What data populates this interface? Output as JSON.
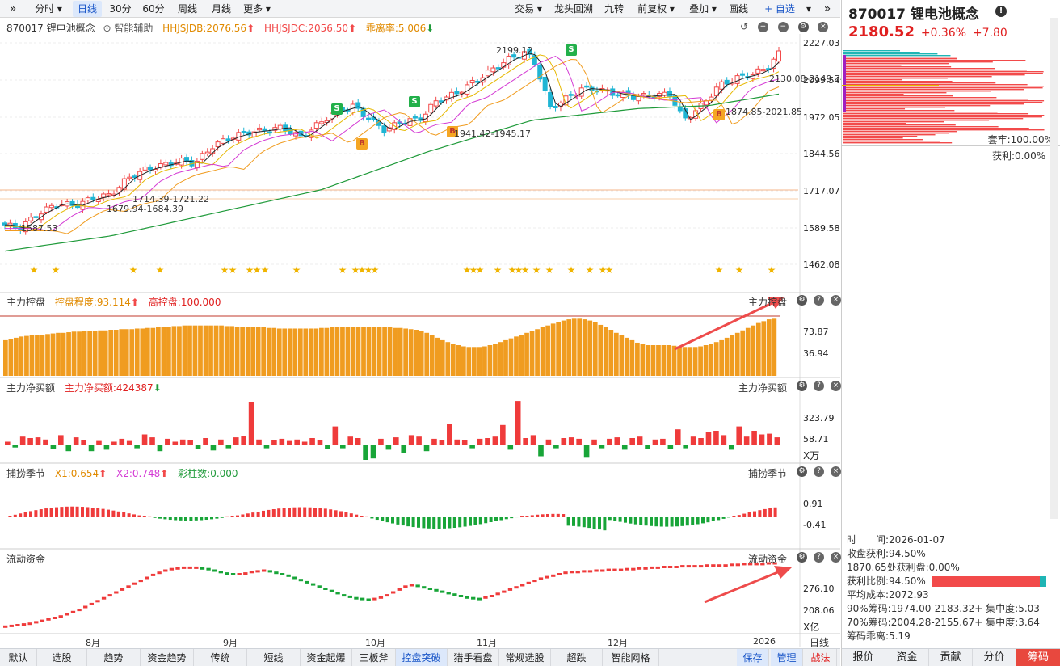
{
  "toolbar": {
    "expand_icon": "»",
    "periods": [
      "分时",
      "日线",
      "30分",
      "60分",
      "周线",
      "月线",
      "更多"
    ],
    "active_period": "日线",
    "right_buttons": [
      "交易",
      "龙头回溯",
      "九转",
      "前复权",
      "叠加",
      "画线",
      "+ 自选"
    ],
    "collapse_icon": "»"
  },
  "main": {
    "title": "870017 锂电池概念",
    "assist": "智能辅助",
    "hhjsjdb": "HHJSJDB:2076.56",
    "hhjsjdc": "HHJSJDC:2056.50",
    "divergence": "乖离率:5.006",
    "y_labels": [
      "2227.03",
      "2099.54",
      "1972.05",
      "1844.56",
      "1717.07",
      "1589.58",
      "1462.08"
    ],
    "annotations": [
      "2199.12",
      "2130.08-2149.74",
      "1874.85-2021.85",
      "1941.42-1945.17",
      "1714.39-1721.22",
      "1679.94-1684.39",
      "1587.53"
    ],
    "signals": [
      "B",
      "S"
    ]
  },
  "panels": {
    "control": {
      "name": "主力控盘",
      "degree": "控盘程度:93.114",
      "high": "高控盘:100.000",
      "y1": "73.87",
      "y2": "36.94"
    },
    "netbuy": {
      "name": "主力净买额",
      "value": "主力净买额:424387",
      "y1": "323.79",
      "y2": "58.71",
      "unit": "X万"
    },
    "season": {
      "name": "捕捞季节",
      "x1": "X1:0.654",
      "x2": "X2:0.748",
      "bars": "彩柱数:0.000",
      "y1": "0.91",
      "y2": "-0.41"
    },
    "flow": {
      "name": "流动资金",
      "y1": "276.10",
      "y2": "208.06",
      "unit": "X亿"
    }
  },
  "xaxis": {
    "months": [
      "8月",
      "9月",
      "10月",
      "11月",
      "12月",
      "2026"
    ],
    "period": "日线"
  },
  "bottom_tabs": [
    "默认",
    "选股",
    "趋势",
    "资金趋势",
    "传统",
    "短线",
    "资金起爆",
    "三板斧",
    "控盘突破",
    "猎手看盘",
    "常规选股",
    "超跌",
    "智能网格"
  ],
  "bottom_active": "控盘突破",
  "bottom_right": [
    "保存",
    "管理",
    "战法"
  ],
  "sidebar": {
    "title": "870017 锂电池概念",
    "price": "2180.52",
    "pct": "+0.36%",
    "chg": "+7.80",
    "firm": "套牢:100.00%",
    "profit": "获利:0.00%",
    "stats": [
      "时　　间:2026-01-07",
      "收盘获利:94.50%",
      "1870.65处获利盘:0.00%",
      "获利比例:94.50%",
      "平均成本:2072.93",
      "90%筹码:1974.00-2183.32+ 集中度:5.03",
      "70%筹码:2004.28-2155.67+ 集中度:3.64",
      "筹码乖离:5.19"
    ],
    "tabs": [
      "报价",
      "资金",
      "贡献",
      "分价",
      "筹码"
    ],
    "active_tab": "筹码"
  },
  "colors": {
    "up": "#f24a4a",
    "down": "#1fb5d4",
    "ma_green": "#1f9a3a",
    "orange": "#f09c20",
    "accent": "#1a56c8"
  },
  "chart_data": {
    "type": "candlestick",
    "y_axis_labels": [
      1462.08,
      1589.58,
      1717.07,
      1844.56,
      1972.05,
      2099.54,
      2227.03
    ],
    "close_path": [
      [
        0,
        1598
      ],
      [
        8,
        1587
      ],
      [
        20,
        1640
      ],
      [
        30,
        1672
      ],
      [
        40,
        1665
      ],
      [
        50,
        1690
      ],
      [
        60,
        1702
      ],
      [
        70,
        1760
      ],
      [
        80,
        1790
      ],
      [
        90,
        1805
      ],
      [
        100,
        1820
      ],
      [
        108,
        1810
      ],
      [
        118,
        1870
      ],
      [
        128,
        1900
      ],
      [
        138,
        1918
      ],
      [
        148,
        1925
      ],
      [
        158,
        1935
      ],
      [
        168,
        1900
      ],
      [
        178,
        1945
      ],
      [
        188,
        1990
      ],
      [
        198,
        2008
      ],
      [
        206,
        1970
      ],
      [
        216,
        1925
      ],
      [
        226,
        1955
      ],
      [
        236,
        1965
      ],
      [
        246,
        2030
      ],
      [
        256,
        2050
      ],
      [
        266,
        2090
      ],
      [
        276,
        2130
      ],
      [
        286,
        2170
      ],
      [
        296,
        2195
      ],
      [
        302,
        2150
      ],
      [
        310,
        2000
      ],
      [
        318,
        2030
      ],
      [
        328,
        2070
      ],
      [
        338,
        2065
      ],
      [
        348,
        2050
      ],
      [
        358,
        2040
      ],
      [
        368,
        2045
      ],
      [
        378,
        2050
      ],
      [
        386,
        1960
      ],
      [
        396,
        2010
      ],
      [
        406,
        2080
      ],
      [
        416,
        2105
      ],
      [
        426,
        2120
      ],
      [
        434,
        2145
      ],
      [
        440,
        2190
      ]
    ],
    "ma_green_path": [
      [
        0,
        1508
      ],
      [
        60,
        1560
      ],
      [
        120,
        1640
      ],
      [
        180,
        1720
      ],
      [
        240,
        1850
      ],
      [
        300,
        1960
      ],
      [
        360,
        2000
      ],
      [
        400,
        2010
      ],
      [
        440,
        2050
      ]
    ],
    "control_values": [
      58,
      60,
      62,
      64,
      65,
      66,
      67,
      67,
      68,
      69,
      70,
      70,
      71,
      72,
      72,
      73,
      73,
      73,
      74,
      74,
      75,
      75,
      76,
      76,
      76,
      77,
      77,
      78,
      78,
      79,
      80,
      80,
      81,
      81,
      82,
      82,
      82,
      82,
      82,
      82,
      82,
      82,
      81,
      81,
      80,
      80,
      80,
      80,
      79,
      79,
      78,
      78,
      77,
      77,
      77,
      77,
      77,
      77,
      77,
      77,
      78,
      78,
      79,
      79,
      79,
      79,
      80,
      80,
      80,
      80,
      80,
      79,
      79,
      79,
      78,
      78,
      77,
      76,
      75,
      73,
      70,
      67,
      62,
      58,
      55,
      52,
      50,
      48,
      47,
      47,
      47,
      48,
      50,
      52,
      55,
      58,
      61,
      64,
      67,
      70,
      73,
      76,
      79,
      82,
      85,
      88,
      90,
      92,
      93,
      93,
      92,
      90,
      87,
      83,
      79,
      75,
      70,
      66,
      62,
      58,
      54,
      52,
      50,
      50,
      50,
      50,
      50,
      49,
      48,
      47,
      47,
      47,
      48,
      50,
      52,
      55,
      58,
      62,
      66,
      70,
      74,
      78,
      82,
      86,
      89,
      92,
      93
    ],
    "netbuy_values": [
      5,
      -3,
      12,
      10,
      11,
      8,
      -5,
      14,
      -8,
      11,
      7,
      -8,
      6,
      -6,
      5,
      9,
      6,
      -4,
      15,
      11,
      -8,
      9,
      5,
      8,
      7,
      -5,
      10,
      -7,
      8,
      -4,
      11,
      13,
      60,
      8,
      -4,
      7,
      9,
      6,
      8,
      5,
      10,
      7,
      -5,
      26,
      -4,
      12,
      10,
      -20,
      -18,
      9,
      -6,
      11,
      -10,
      14,
      12,
      -8,
      9,
      7,
      30,
      8,
      7,
      -4,
      9,
      10,
      12,
      28,
      -6,
      61,
      10,
      14,
      -15,
      8,
      -4,
      10,
      11,
      9,
      -17,
      8,
      -4,
      9,
      11,
      -6,
      10,
      12,
      -5,
      8,
      9,
      -5,
      22,
      -4,
      12,
      10,
      18,
      20,
      14,
      -6,
      26,
      12,
      20,
      15,
      16,
      11
    ],
    "flow_values": [
      208,
      209,
      210,
      211,
      212,
      214,
      216,
      218,
      220,
      222,
      225,
      228,
      231,
      235,
      239,
      243,
      247,
      251,
      255,
      259,
      263,
      267,
      271,
      275,
      279,
      282,
      285,
      287,
      288,
      289,
      289,
      289,
      288,
      287,
      285,
      283,
      281,
      280,
      280,
      281,
      283,
      284,
      285,
      284,
      282,
      280,
      278,
      275,
      272,
      269,
      266,
      263,
      260,
      257,
      254,
      251,
      249,
      247,
      246,
      245,
      246,
      248,
      251,
      255,
      259,
      263,
      265,
      264,
      262,
      260,
      258,
      256,
      254,
      252,
      250,
      248,
      247,
      246,
      248,
      250,
      253,
      256,
      259,
      262,
      265,
      268,
      271,
      274,
      276,
      278,
      280,
      282,
      283,
      283,
      284,
      284,
      285,
      285,
      286,
      286,
      286,
      287,
      287,
      288,
      288,
      289,
      289,
      290,
      290,
      290,
      291,
      291,
      291,
      291,
      292,
      292,
      292,
      292,
      293,
      293,
      294,
      294,
      294,
      294,
      295,
      295
    ]
  }
}
